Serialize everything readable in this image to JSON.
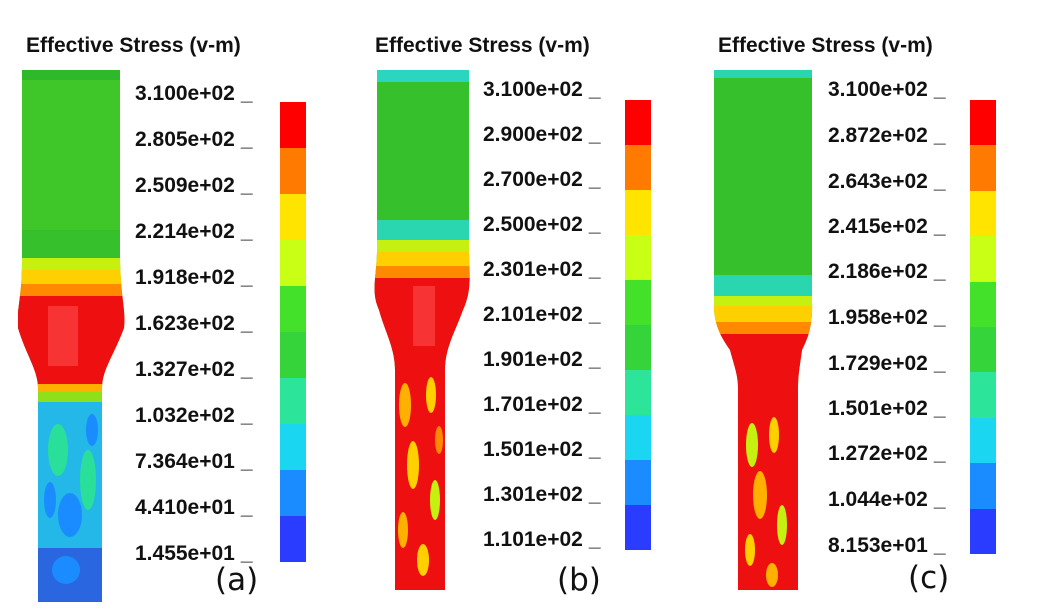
{
  "legend_colors": [
    "#ff0000",
    "#ff7a00",
    "#ffe400",
    "#c8ff14",
    "#44e12b",
    "#35d43a",
    "#2de59a",
    "#1ad6f0",
    "#1a8cff",
    "#2a3cff"
  ],
  "panels": [
    {
      "title": "Effective Stress (v-m)",
      "label": "(a)",
      "ticks": [
        "3.100e+02",
        "2.805e+02",
        "2.509e+02",
        "2.214e+02",
        "1.918e+02",
        "1.623e+02",
        "1.327e+02",
        "1.032e+02",
        "7.364e+01",
        "4.410e+01",
        "1.455e+01"
      ]
    },
    {
      "title": "Effective Stress (v-m)",
      "label": "(b)",
      "ticks": [
        "3.100e+02",
        "2.900e+02",
        "2.700e+02",
        "2.500e+02",
        "2.301e+02",
        "2.101e+02",
        "1.901e+02",
        "1.701e+02",
        "1.501e+02",
        "1.301e+02",
        "1.101e+02"
      ]
    },
    {
      "title": "Effective Stress (v-m)",
      "label": "(c)",
      "ticks": [
        "3.100e+02",
        "2.872e+02",
        "2.643e+02",
        "2.415e+02",
        "2.186e+02",
        "1.958e+02",
        "1.729e+02",
        "1.501e+02",
        "1.272e+02",
        "1.044e+02",
        "8.153e+01"
      ]
    }
  ]
}
